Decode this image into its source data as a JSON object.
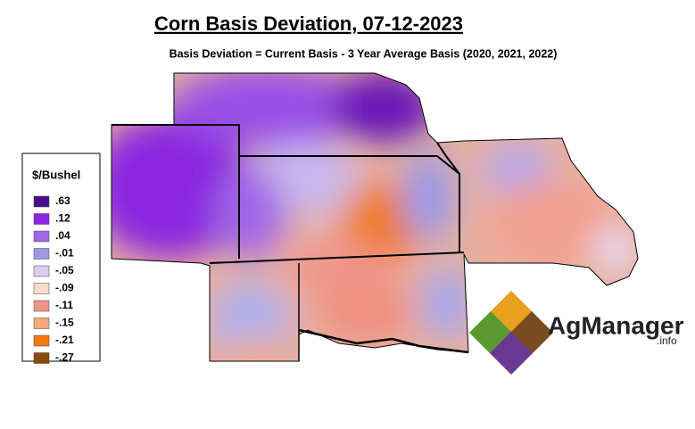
{
  "title": "Corn Basis Deviation, 07-12-2023",
  "subtitle": "Basis Deviation = Current Basis - 3 Year Average Basis (2020, 2021, 2022)",
  "legend": {
    "title": "$/Bushel",
    "items": [
      {
        "label": ".63",
        "color": "#4b0c8c"
      },
      {
        "label": ".12",
        "color": "#8a25e0"
      },
      {
        "label": ".04",
        "color": "#a066e8"
      },
      {
        "label": "-.01",
        "color": "#9a9ae8"
      },
      {
        "label": "-.05",
        "color": "#d9cbf2"
      },
      {
        "label": "-.09",
        "color": "#f5dccd"
      },
      {
        "label": "-.11",
        "color": "#f0948a"
      },
      {
        "label": "-.15",
        "color": "#f5a878"
      },
      {
        "label": "-.21",
        "color": "#f07a10"
      },
      {
        "label": "-.27",
        "color": "#8b4a10"
      }
    ]
  },
  "logo": {
    "name": "AgManager",
    "suffix": ".info"
  }
}
